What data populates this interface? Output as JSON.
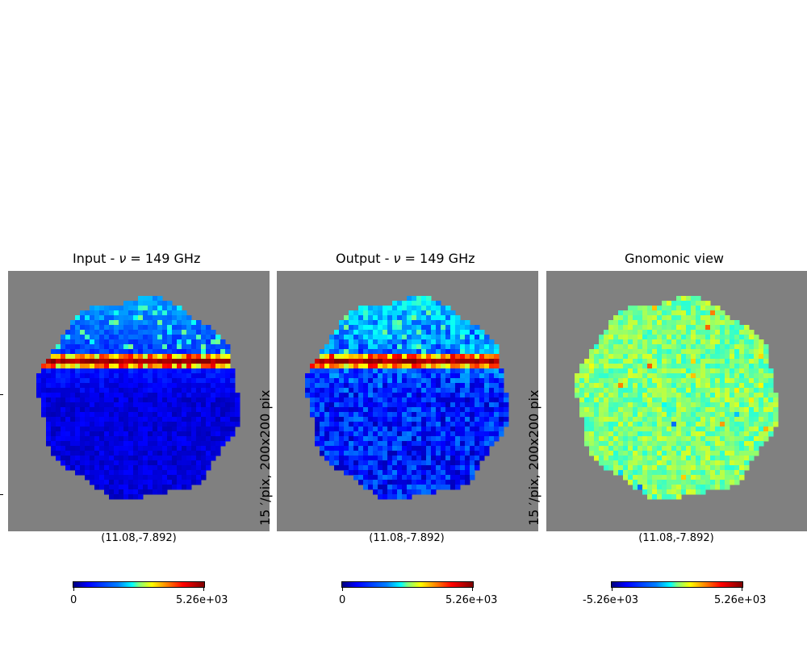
{
  "panels": [
    {
      "title_prefix": "Input - ",
      "title_symbol": "ν",
      "title_suffix": " = 149 GHz",
      "coord_label": "(11.08,-7.892)",
      "ylabel": "",
      "cbar_min": "0",
      "cbar_max": "5.26e+03",
      "style": "input"
    },
    {
      "title_prefix": "Output - ",
      "title_symbol": "ν",
      "title_suffix": " = 149 GHz",
      "coord_label": "(11.08,-7.892)",
      "ylabel": "15 ′/pix,   200x200 pix",
      "cbar_min": "0",
      "cbar_max": "5.26e+03",
      "style": "output"
    },
    {
      "title_prefix": "Gnomonic view",
      "title_symbol": "",
      "title_suffix": "",
      "coord_label": "(11.08,-7.892)",
      "ylabel": "15 ′/pix,   200x200 pix",
      "cbar_min": "-5.26e+03",
      "cbar_max": "5.26e+03",
      "style": "residual"
    }
  ],
  "chart_data": [
    {
      "type": "heatmap",
      "title": "Input - ν = 149 GHz",
      "projection": "gnomonic",
      "center": "(11.08,-7.892)",
      "resolution": "",
      "colormap": "jet",
      "range": [
        0,
        5260
      ],
      "features": "galactic plane band saturated near upper third"
    },
    {
      "type": "heatmap",
      "title": "Output - ν = 149 GHz",
      "projection": "gnomonic",
      "center": "(11.08,-7.892)",
      "resolution": "15 ′/pix, 200x200 pix",
      "colormap": "jet",
      "range": [
        0,
        5260
      ]
    },
    {
      "type": "heatmap",
      "title": "Gnomonic view",
      "projection": "gnomonic",
      "center": "(11.08,-7.892)",
      "resolution": "15 ′/pix, 200x200 pix",
      "colormap": "jet",
      "range": [
        -5260,
        5260
      ]
    }
  ],
  "colors": {
    "background": "#808080",
    "jet_low": "#00007f",
    "jet_high": "#7f0000"
  }
}
